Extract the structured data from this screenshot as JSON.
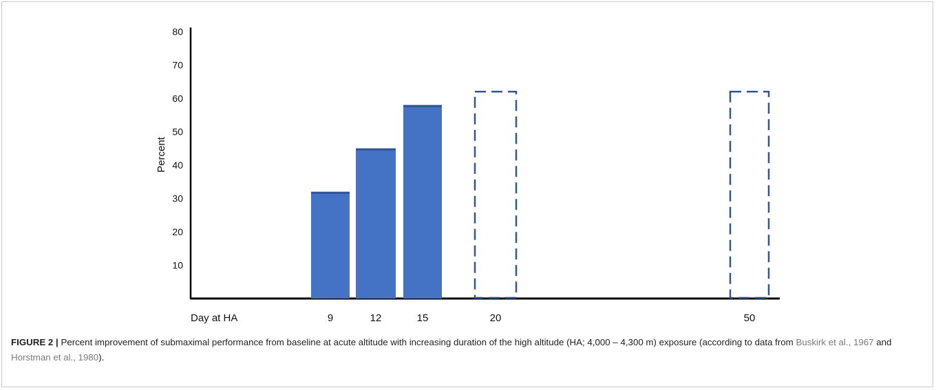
{
  "chart_data": {
    "type": "bar",
    "ylabel": "Percent",
    "xlabel": "Day at HA",
    "ylim": [
      0,
      80
    ],
    "yticks": [
      10,
      20,
      30,
      40,
      50,
      60,
      70,
      80
    ],
    "x": [
      9,
      12,
      15,
      20,
      50
    ],
    "categories": [
      "9",
      "12",
      "15",
      "20",
      "50"
    ],
    "values": [
      32,
      45,
      58,
      62,
      62
    ],
    "styles": [
      "solid",
      "solid",
      "solid",
      "dashed",
      "dashed"
    ],
    "colors": {
      "bar": "#4472c4",
      "bar_top": "#2f5597",
      "dashed": "#2f5597",
      "axis": "#000000"
    },
    "grid": false
  },
  "caption": {
    "label": "FIGURE 2 |",
    "text_1": " Percent improvement of submaximal performance from baseline at acute altitude with increasing duration of the high altitude (HA; 4,000 – 4,300 m) exposure (according to data from ",
    "ref_1": "Buskirk et al., 1967",
    "text_2": " and ",
    "ref_2": "Horstman et al., 1980",
    "text_3": ")."
  }
}
